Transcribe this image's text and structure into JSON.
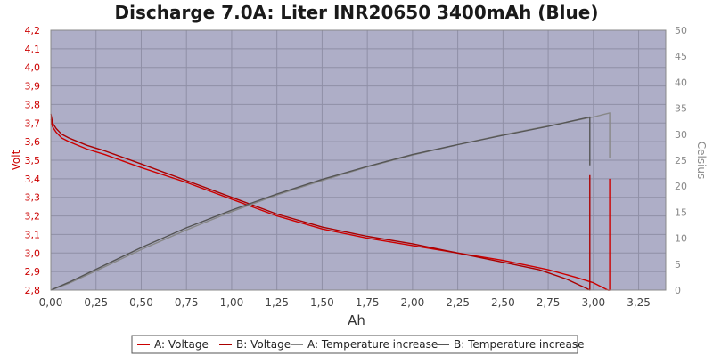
{
  "chart_data": {
    "type": "line",
    "title": "Discharge 7.0A: Liter INR20650 3400mAh (Blue)",
    "xlabel": "Ah",
    "ylabel": "Volt",
    "y2label": "Celsius",
    "xlim": [
      0,
      3.4
    ],
    "ylim": [
      2.8,
      4.2
    ],
    "y2lim": [
      0,
      50
    ],
    "grid": true,
    "legend_position": "bottom",
    "x_ticks": [
      "0,00",
      "0,25",
      "0,50",
      "0,75",
      "1,00",
      "1,25",
      "1,50",
      "1,75",
      "2,00",
      "2,25",
      "2,50",
      "2,75",
      "3,00",
      "3,25"
    ],
    "y_ticks": [
      "2,8",
      "2,9",
      "3,0",
      "3,1",
      "3,2",
      "3,3",
      "3,4",
      "3,5",
      "3,6",
      "3,7",
      "3,8",
      "3,9",
      "4,0",
      "4,1",
      "4,2"
    ],
    "y2_ticks": [
      "0",
      "5",
      "10",
      "15",
      "20",
      "25",
      "30",
      "35",
      "40",
      "45",
      "50"
    ],
    "series": [
      {
        "name": "A: Voltage",
        "axis": "left",
        "color": "#cc0000",
        "x": [
          0.0,
          0.01,
          0.03,
          0.06,
          0.1,
          0.2,
          0.3,
          0.5,
          0.75,
          1.0,
          1.25,
          1.5,
          1.75,
          2.0,
          2.25,
          2.5,
          2.75,
          2.9,
          3.0,
          3.08,
          3.09,
          3.09
        ],
        "y": [
          3.72,
          3.68,
          3.65,
          3.62,
          3.6,
          3.56,
          3.53,
          3.46,
          3.38,
          3.29,
          3.2,
          3.13,
          3.08,
          3.04,
          3.0,
          2.96,
          2.91,
          2.87,
          2.84,
          2.8,
          2.8,
          3.4
        ]
      },
      {
        "name": "B: Voltage",
        "axis": "left",
        "color": "#aa0000",
        "x": [
          0.0,
          0.01,
          0.03,
          0.06,
          0.1,
          0.2,
          0.3,
          0.5,
          0.75,
          1.0,
          1.25,
          1.5,
          1.75,
          2.0,
          2.25,
          2.5,
          2.7,
          2.85,
          2.96,
          2.98,
          2.98
        ],
        "y": [
          3.75,
          3.7,
          3.67,
          3.64,
          3.62,
          3.58,
          3.55,
          3.48,
          3.39,
          3.3,
          3.21,
          3.14,
          3.09,
          3.05,
          3.0,
          2.95,
          2.91,
          2.86,
          2.81,
          2.8,
          3.42
        ]
      },
      {
        "name": "A: Temperature increase",
        "axis": "right",
        "color": "#888888",
        "x": [
          0.0,
          0.1,
          0.25,
          0.5,
          0.75,
          1.0,
          1.25,
          1.5,
          1.75,
          2.0,
          2.25,
          2.5,
          2.75,
          3.0,
          3.09,
          3.09
        ],
        "y": [
          0.0,
          1.3,
          3.7,
          7.8,
          11.6,
          15.1,
          18.3,
          21.1,
          23.7,
          26.0,
          28.0,
          29.9,
          31.6,
          33.3,
          34.1,
          25.5
        ]
      },
      {
        "name": "B: Temperature increase",
        "axis": "right",
        "color": "#555555",
        "x": [
          0.0,
          0.1,
          0.25,
          0.5,
          0.75,
          1.0,
          1.25,
          1.5,
          1.75,
          2.0,
          2.25,
          2.5,
          2.75,
          2.98,
          2.98
        ],
        "y": [
          0.0,
          1.5,
          4.0,
          8.2,
          12.0,
          15.4,
          18.5,
          21.3,
          23.8,
          26.1,
          28.0,
          29.8,
          31.5,
          33.3,
          24.0
        ]
      }
    ]
  }
}
